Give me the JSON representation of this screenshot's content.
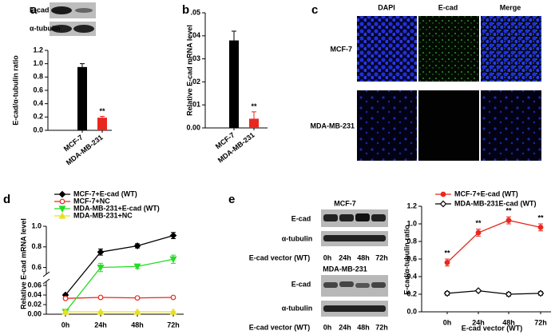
{
  "chart_data": [
    {
      "panel": "a",
      "type": "bar",
      "ylabel": "E-cad/α-tubulin ratio",
      "categories": [
        "MCF-7",
        "MDA-MB-231"
      ],
      "values": [
        0.95,
        0.19
      ],
      "errors": [
        0.05,
        0.02
      ],
      "colors": [
        "#000000",
        "#e8281e"
      ],
      "significance": [
        null,
        "**"
      ],
      "ylim": [
        0,
        1.2
      ],
      "yticks": [
        {
          "value": 0,
          "label": "0.0"
        },
        {
          "value": 0.2,
          "label": "0.2"
        },
        {
          "value": 0.4,
          "label": "0.4"
        },
        {
          "value": 0.6,
          "label": "0.6"
        },
        {
          "value": 0.8,
          "label": "0.8"
        },
        {
          "value": 1.0,
          "label": "1.0"
        },
        {
          "value": 1.2,
          "label": "1.2"
        }
      ]
    },
    {
      "panel": "b",
      "type": "bar",
      "ylabel": "Relative E-cad mRNA level",
      "categories": [
        "MCF-7",
        "MDA-MB-231"
      ],
      "values": [
        0.038,
        0.004
      ],
      "errors": [
        0.004,
        0.003
      ],
      "colors": [
        "#000000",
        "#e8281e"
      ],
      "significance": [
        null,
        "**"
      ],
      "ylim": [
        0,
        0.05
      ],
      "yticks": [
        {
          "value": 0,
          "label": "0.00"
        },
        {
          "value": 0.01,
          "label": ".01"
        },
        {
          "value": 0.02,
          "label": ".02"
        },
        {
          "value": 0.03,
          "label": ".03"
        },
        {
          "value": 0.04,
          "label": ".04"
        },
        {
          "value": 0.05,
          "label": ".05"
        }
      ]
    },
    {
      "panel": "d",
      "type": "line",
      "ylabel": "Relative E-cad mRNA level",
      "categories": [
        "0h",
        "24h",
        "48h",
        "72h"
      ],
      "series": [
        {
          "name": "MCF-7+E-cad (WT)",
          "color": "#000000",
          "marker": "diamond",
          "marker_filled": true,
          "values": [
            0.04,
            0.75,
            0.81,
            0.91
          ],
          "errors": [
            0.002,
            0.03,
            0.02,
            0.03
          ]
        },
        {
          "name": "MCF-7+NC",
          "color": "#e8281e",
          "marker": "circle",
          "marker_filled": false,
          "values": [
            0.033,
            0.035,
            0.034,
            0.035
          ],
          "errors": [
            0.001,
            0.001,
            0.001,
            0.001
          ]
        },
        {
          "name": "MDA-MB-231+E-cad (WT)",
          "color": "#22dd22",
          "marker": "triangle-down",
          "marker_filled": true,
          "values": [
            0.005,
            0.6,
            0.61,
            0.68
          ],
          "errors": [
            0.001,
            0.04,
            0.02,
            0.04
          ]
        },
        {
          "name": "MDA-MB-231+NC",
          "color": "#e8e020",
          "marker": "triangle",
          "marker_filled": true,
          "values": [
            0.005,
            0.005,
            0.005,
            0.005
          ],
          "errors": [
            0.001,
            0.001,
            0.001,
            0.001
          ]
        }
      ],
      "ylim": [
        0,
        1.0
      ],
      "ybreak": [
        0.065,
        0.55
      ],
      "yticks": [
        {
          "value": 0,
          "label": "0.00"
        },
        {
          "value": 0.02,
          "label": "0.02"
        },
        {
          "value": 0.04,
          "label": "0.04"
        },
        {
          "value": 0.06,
          "label": "0.06"
        },
        {
          "value": 0.6,
          "label": "0.6"
        },
        {
          "value": 0.8,
          "label": "0.8"
        },
        {
          "value": 1.0,
          "label": "1.0"
        }
      ]
    },
    {
      "panel": "e",
      "type": "line",
      "ylabel": "E-cad/α-tubulin ratio",
      "xlabel": "E-cad vector (WT)",
      "categories": [
        "0h",
        "24h",
        "48h",
        "72h"
      ],
      "series": [
        {
          "name": "MCF-7+E-cad (WT)",
          "color": "#e8281e",
          "marker": "circle",
          "marker_filled": true,
          "values": [
            0.56,
            0.9,
            1.04,
            0.96
          ],
          "errors": [
            0.04,
            0.04,
            0.04,
            0.04
          ],
          "significance": [
            "**",
            "**",
            "**",
            "**"
          ]
        },
        {
          "name": "MDA-MB-231E-cad (WT)",
          "color": "#000000",
          "marker": "diamond",
          "marker_filled": false,
          "values": [
            0.21,
            0.24,
            0.2,
            0.21
          ],
          "errors": [
            0.02,
            0.01,
            0.02,
            0.02
          ]
        }
      ],
      "ylim": [
        0,
        1.2
      ],
      "yticks": [
        {
          "value": 0,
          "label": "0.0"
        },
        {
          "value": 0.2,
          "label": "0.2"
        },
        {
          "value": 0.4,
          "label": "0.4"
        },
        {
          "value": 0.6,
          "label": "0.6"
        },
        {
          "value": 0.8,
          "label": "0.8"
        },
        {
          "value": 1.0,
          "label": "1.0"
        },
        {
          "value": 1.2,
          "label": "1.2"
        }
      ]
    }
  ],
  "blots_a": {
    "labels": [
      "E-cad",
      "α-tubulin"
    ]
  },
  "panel_c": {
    "label": "c",
    "columns": [
      "DAPI",
      "E-cad",
      "Merge"
    ],
    "rows": [
      "MCF-7",
      "MDA-MB-231"
    ]
  },
  "blots_e": {
    "groups": [
      {
        "title": "MCF-7",
        "labels": [
          "E-cad",
          "α-tubulin"
        ],
        "xlabel": "E-cad vector (WT)",
        "lanes": [
          "0h",
          "24h",
          "48h",
          "72h"
        ]
      },
      {
        "title": "MDA-MB-231",
        "labels": [
          "E-cad",
          "α-tubulin"
        ],
        "xlabel": "E-cad vector (WT)",
        "lanes": [
          "0h",
          "24h",
          "48h",
          "72h"
        ]
      }
    ]
  }
}
